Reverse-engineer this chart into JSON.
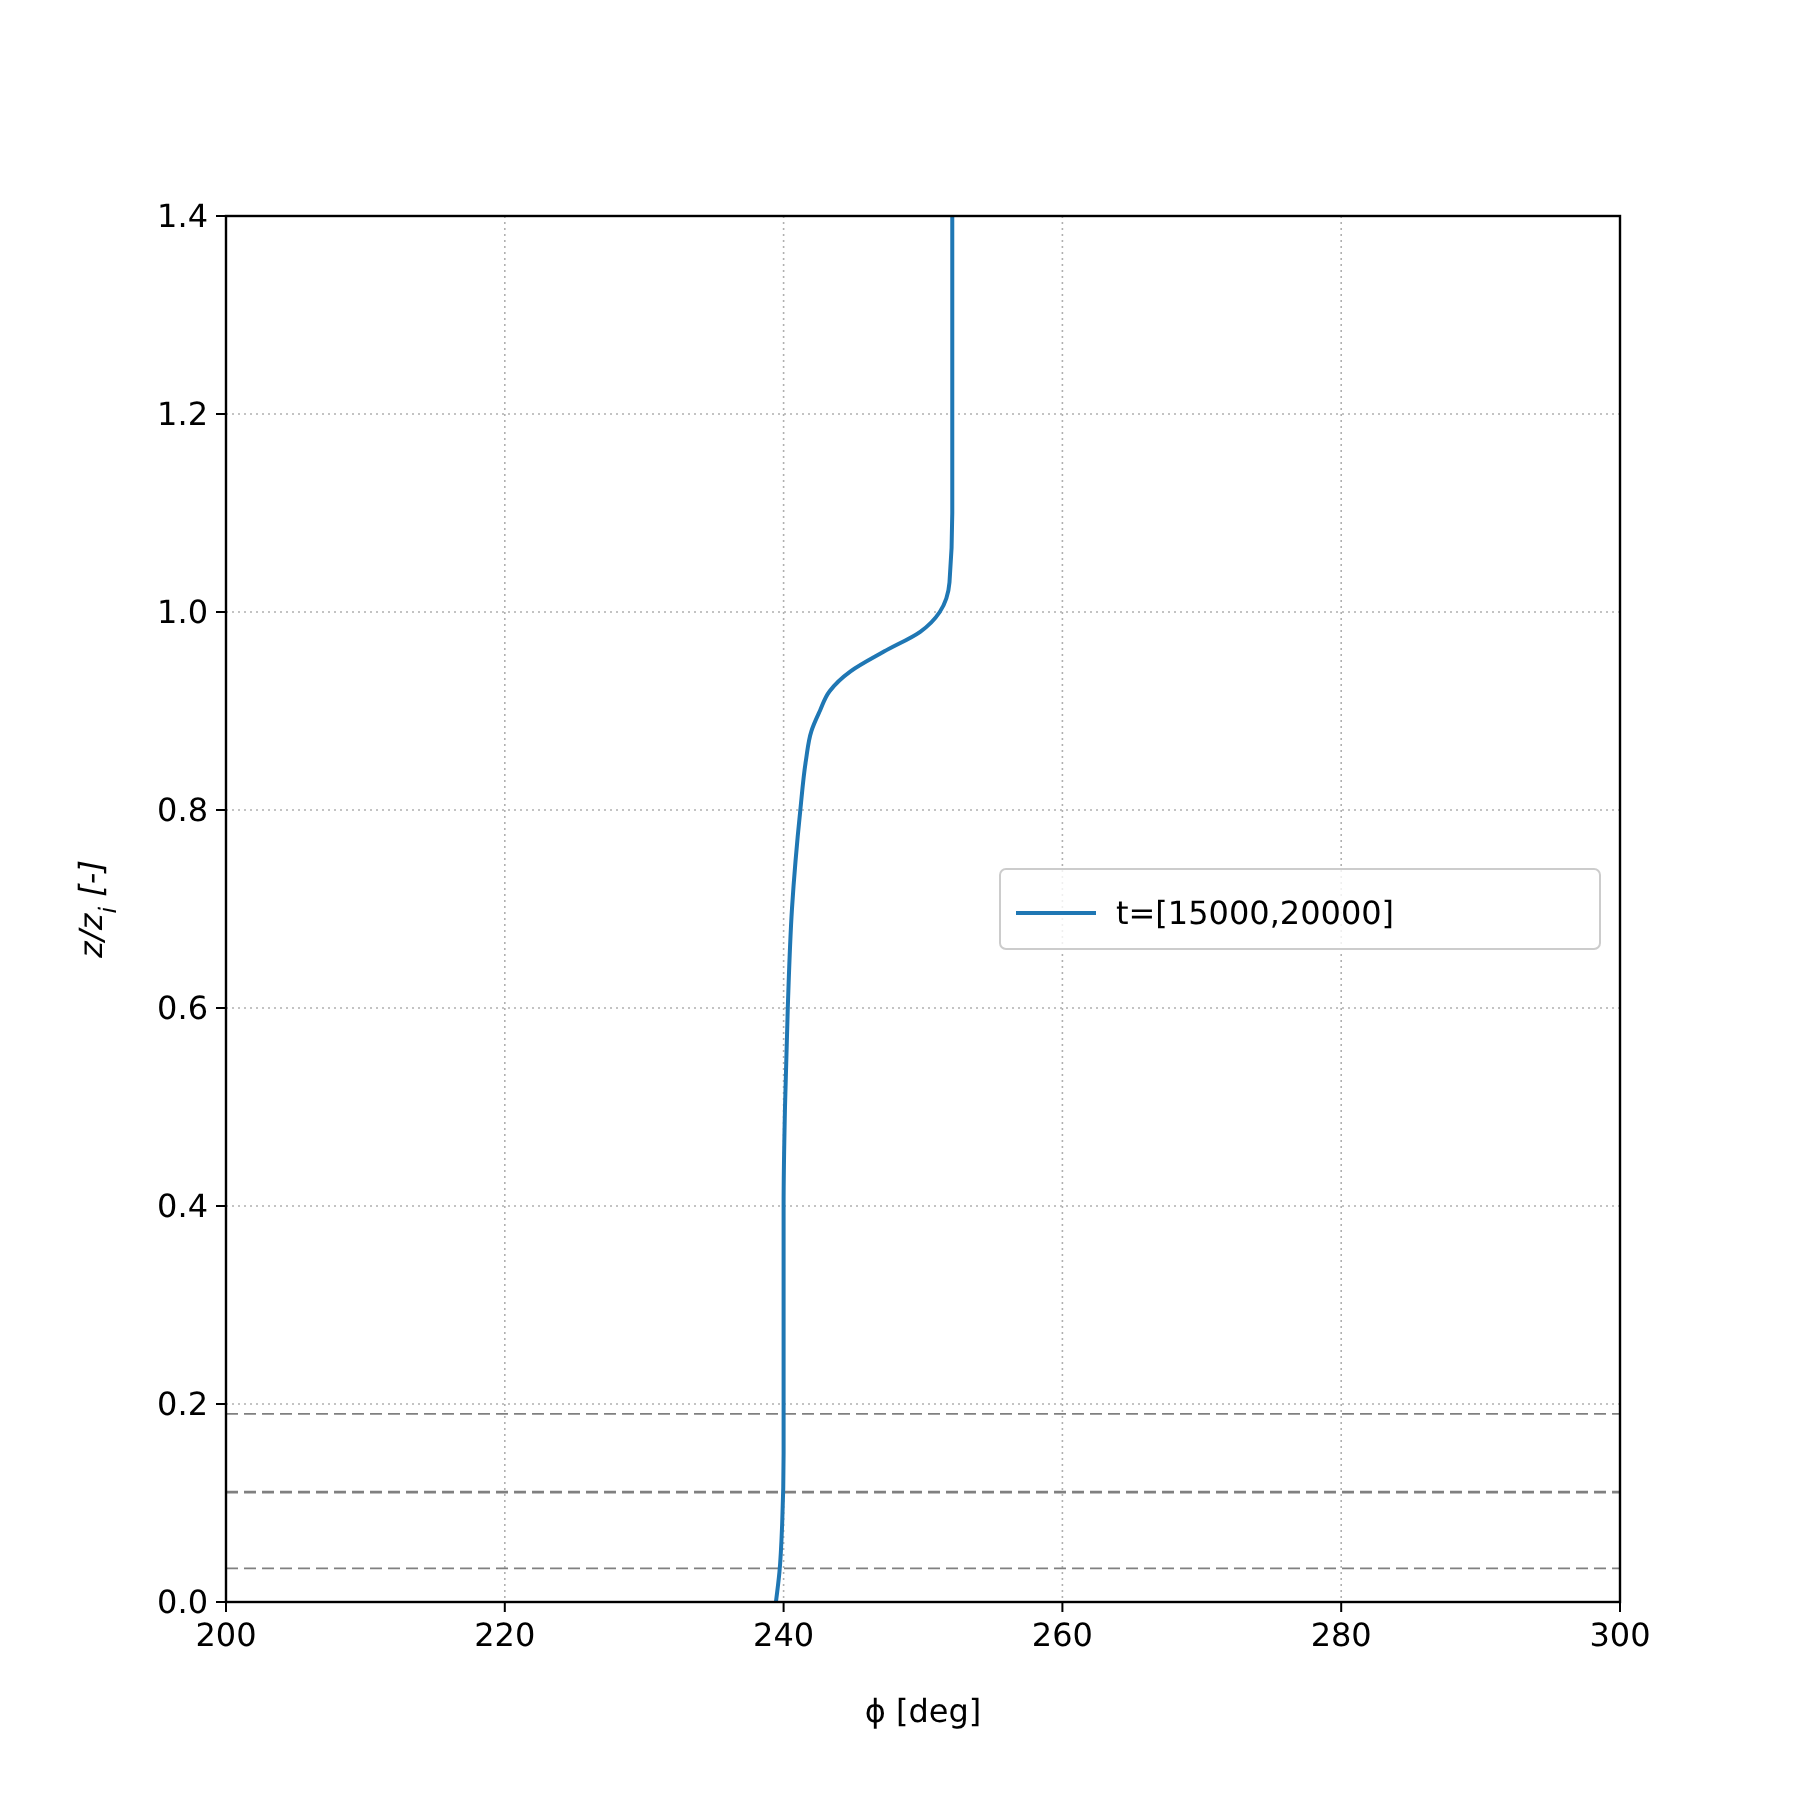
{
  "chart_data": {
    "type": "line",
    "xlabel": "ϕ [deg]",
    "ylabel": "z/z$_{i}$ [-]",
    "xlim": [
      200,
      300
    ],
    "xticks": [
      200,
      220,
      240,
      260,
      280,
      300
    ],
    "ylim": [
      0,
      1.4
    ],
    "yticks": [
      {
        "value": 0,
        "label": "0.0"
      },
      {
        "value": 0.2,
        "label": "0.2"
      },
      {
        "value": 0.4,
        "label": "0.4"
      },
      {
        "value": 0.6,
        "label": "0.6"
      },
      {
        "value": 0.8,
        "label": "0.8"
      },
      {
        "value": 1,
        "label": "1.0"
      },
      {
        "value": 1.2,
        "label": "1.2"
      },
      {
        "value": 1.4,
        "label": "1.4"
      }
    ],
    "grid": true,
    "legend": "right",
    "line_style": "solid",
    "marker": "none",
    "series": [
      {
        "name": "t=[15000,20000]",
        "color": "#1f77b4",
        "x": [
          239.45,
          239.7,
          239.9,
          240.0,
          240.0,
          240.1,
          240.3,
          240.6,
          241.2,
          241.6,
          242.0,
          242.6,
          243.3,
          244.8,
          247.2,
          249.8,
          251.2,
          251.9,
          252.1,
          252.1,
          252.1
        ],
        "values": [
          0,
          0.03,
          0.08,
          0.15,
          0.4,
          0.5,
          0.6,
          0.7,
          0.8,
          0.85,
          0.88,
          0.9,
          0.92,
          0.94,
          0.96,
          0.98,
          1.0,
          1.03,
          1.1,
          1.2,
          1.4
        ]
      }
    ],
    "ref_lines": [
      {
        "axis": "y",
        "value": 0.034,
        "color": "#808080",
        "line_style": "dashed"
      },
      {
        "axis": "y",
        "value": 0.111,
        "color": "#808080",
        "line_style": "dashed"
      },
      {
        "axis": "y",
        "value": 0.19,
        "color": "#808080",
        "line_style": "dashed"
      }
    ]
  }
}
